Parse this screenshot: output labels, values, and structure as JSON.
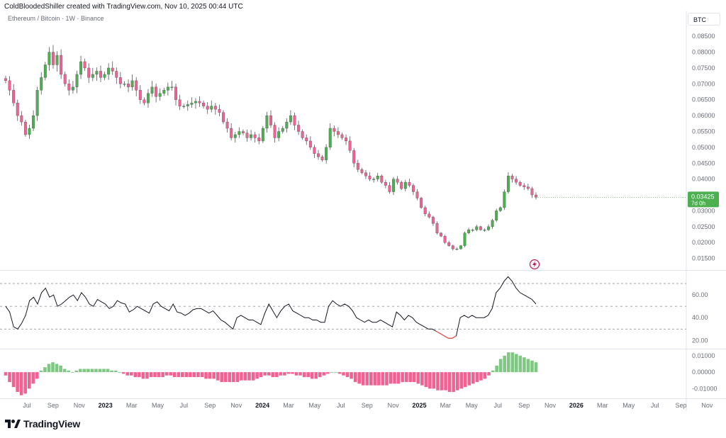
{
  "header": {
    "credit": "ColdBloodedShiller created with TradingView.com, Nov 10, 2025 00:44 UTC",
    "symbol": "Ethereum / Bitcoin · 1W · Binance",
    "currency": "BTC"
  },
  "brand": {
    "name": "TradingView",
    "icon": "tradingview-logo-icon"
  },
  "price_label": {
    "value": "0.03425",
    "countdown": "7d 0h",
    "color": "#4caf50"
  },
  "colors": {
    "up": "#4caf50",
    "down": "#f06292",
    "line": "#131722",
    "grid": "#e0e3eb",
    "hist_up": "#81c784",
    "hist_down": "#f06292"
  },
  "lightning_icon": "lightning-bolt-icon",
  "chart_data": [
    {
      "type": "candlestick",
      "title": "Ethereum / Bitcoin · 1W · Binance",
      "ylabel": "BTC",
      "ylim": [
        0.012,
        0.0875
      ],
      "yticks": [
        "0.08500",
        "0.08000",
        "0.07500",
        "0.07000",
        "0.06500",
        "0.06000",
        "0.05500",
        "0.05000",
        "0.04500",
        "0.04000",
        "0.03500",
        "0.03000",
        "0.02500",
        "0.02000",
        "0.01500"
      ],
      "last_price": 0.03425,
      "series_closes": [
        0.071,
        0.068,
        0.064,
        0.06,
        0.058,
        0.054,
        0.056,
        0.06,
        0.068,
        0.072,
        0.076,
        0.08,
        0.076,
        0.079,
        0.073,
        0.07,
        0.068,
        0.069,
        0.073,
        0.077,
        0.075,
        0.072,
        0.073,
        0.074,
        0.072,
        0.073,
        0.075,
        0.074,
        0.072,
        0.07,
        0.07,
        0.069,
        0.071,
        0.068,
        0.065,
        0.064,
        0.067,
        0.069,
        0.066,
        0.067,
        0.068,
        0.069,
        0.069,
        0.065,
        0.063,
        0.063,
        0.0635,
        0.064,
        0.0645,
        0.064,
        0.063,
        0.062,
        0.063,
        0.062,
        0.061,
        0.058,
        0.056,
        0.053,
        0.054,
        0.055,
        0.0545,
        0.053,
        0.054,
        0.053,
        0.052,
        0.056,
        0.06,
        0.057,
        0.053,
        0.055,
        0.056,
        0.058,
        0.06,
        0.057,
        0.055,
        0.053,
        0.052,
        0.05,
        0.048,
        0.047,
        0.046,
        0.05,
        0.056,
        0.055,
        0.054,
        0.053,
        0.052,
        0.049,
        0.045,
        0.043,
        0.042,
        0.041,
        0.04,
        0.04,
        0.041,
        0.039,
        0.038,
        0.036,
        0.04,
        0.039,
        0.037,
        0.039,
        0.038,
        0.036,
        0.034,
        0.031,
        0.029,
        0.028,
        0.026,
        0.023,
        0.022,
        0.02,
        0.019,
        0.018,
        0.018,
        0.019,
        0.023,
        0.024,
        0.024,
        0.025,
        0.024,
        0.024,
        0.025,
        0.027,
        0.03,
        0.031,
        0.036,
        0.041,
        0.04,
        0.039,
        0.038,
        0.0375,
        0.037,
        0.035,
        0.03425
      ]
    },
    {
      "type": "line",
      "name": "",
      "ylim": [
        14,
        80
      ],
      "yticks": [
        "60.00",
        "40.00",
        "20.00"
      ],
      "bands": [
        70,
        50,
        30
      ],
      "values": [
        50,
        45,
        32,
        30,
        35,
        42,
        55,
        58,
        52,
        62,
        66,
        58,
        60,
        50,
        52,
        55,
        58,
        60,
        55,
        62,
        58,
        52,
        50,
        56,
        54,
        52,
        48,
        50,
        55,
        53,
        52,
        45,
        47,
        50,
        48,
        46,
        44,
        52,
        54,
        50,
        48,
        46,
        52,
        45,
        44,
        42,
        44,
        47,
        48,
        48,
        46,
        44,
        46,
        42,
        38,
        36,
        33,
        30,
        40,
        42,
        40,
        38,
        38,
        36,
        34,
        44,
        52,
        46,
        40,
        46,
        50,
        52,
        46,
        44,
        42,
        40,
        40,
        38,
        38,
        36,
        36,
        50,
        55,
        52,
        50,
        52,
        50,
        46,
        40,
        38,
        36,
        38,
        36,
        36,
        38,
        36,
        34,
        32,
        45,
        42,
        38,
        42,
        40,
        36,
        34,
        32,
        30,
        30,
        28,
        26,
        24,
        22,
        22,
        24,
        40,
        42,
        40,
        42,
        40,
        40,
        40,
        42,
        48,
        62,
        66,
        72,
        76,
        72,
        66,
        62,
        60,
        58,
        56,
        52
      ]
    },
    {
      "type": "histogram",
      "name": "",
      "ylim": [
        -0.015,
        0.0125
      ],
      "yticks": [
        "0.01000",
        "0.00000",
        "-0.01000"
      ],
      "values": [
        -0.002,
        -0.006,
        -0.009,
        -0.012,
        -0.014,
        -0.013,
        -0.01,
        -0.007,
        -0.004,
        0.001,
        0.003,
        0.005,
        0.006,
        0.005,
        0.004,
        0.002,
        0.001,
        0.0,
        0.001,
        0.002,
        0.002,
        0.002,
        0.002,
        0.002,
        0.002,
        0.002,
        0.002,
        0.001,
        0.001,
        0.0,
        -0.001,
        -0.002,
        -0.002,
        -0.003,
        -0.003,
        -0.004,
        -0.004,
        -0.003,
        -0.003,
        -0.003,
        -0.003,
        -0.002,
        -0.002,
        -0.003,
        -0.003,
        -0.003,
        -0.003,
        -0.003,
        -0.003,
        -0.003,
        -0.003,
        -0.004,
        -0.004,
        -0.004,
        -0.005,
        -0.006,
        -0.006,
        -0.006,
        -0.006,
        -0.006,
        -0.005,
        -0.005,
        -0.005,
        -0.005,
        -0.004,
        -0.003,
        -0.002,
        -0.002,
        -0.003,
        -0.003,
        -0.002,
        -0.002,
        -0.001,
        -0.001,
        -0.002,
        -0.002,
        -0.003,
        -0.003,
        -0.004,
        -0.004,
        -0.003,
        -0.002,
        -0.001,
        0.0,
        0.0,
        -0.001,
        -0.002,
        -0.003,
        -0.004,
        -0.006,
        -0.007,
        -0.008,
        -0.008,
        -0.008,
        -0.008,
        -0.008,
        -0.008,
        -0.008,
        -0.007,
        -0.007,
        -0.007,
        -0.006,
        -0.006,
        -0.006,
        -0.006,
        -0.007,
        -0.008,
        -0.009,
        -0.01,
        -0.01,
        -0.011,
        -0.011,
        -0.011,
        -0.012,
        -0.012,
        -0.011,
        -0.01,
        -0.009,
        -0.008,
        -0.007,
        -0.006,
        -0.005,
        -0.004,
        -0.002,
        0.001,
        0.004,
        0.008,
        0.01,
        0.012,
        0.012,
        0.011,
        0.01,
        0.009,
        0.008,
        0.007,
        0.006
      ]
    },
    {
      "type": "time_axis",
      "labels": [
        {
          "text": "Jul",
          "bold": false
        },
        {
          "text": "Sep",
          "bold": false
        },
        {
          "text": "Nov",
          "bold": false
        },
        {
          "text": "2023",
          "bold": true
        },
        {
          "text": "Mar",
          "bold": false
        },
        {
          "text": "May",
          "bold": false
        },
        {
          "text": "Jul",
          "bold": false
        },
        {
          "text": "Sep",
          "bold": false
        },
        {
          "text": "Nov",
          "bold": false
        },
        {
          "text": "2024",
          "bold": true
        },
        {
          "text": "Mar",
          "bold": false
        },
        {
          "text": "May",
          "bold": false
        },
        {
          "text": "Jul",
          "bold": false
        },
        {
          "text": "Sep",
          "bold": false
        },
        {
          "text": "Nov",
          "bold": false
        },
        {
          "text": "2025",
          "bold": true
        },
        {
          "text": "Mar",
          "bold": false
        },
        {
          "text": "May",
          "bold": false
        },
        {
          "text": "Jul",
          "bold": false
        },
        {
          "text": "Sep",
          "bold": false
        },
        {
          "text": "Nov",
          "bold": false
        },
        {
          "text": "2026",
          "bold": true
        },
        {
          "text": "Mar",
          "bold": false
        },
        {
          "text": "May",
          "bold": false
        },
        {
          "text": "Jul",
          "bold": false
        },
        {
          "text": "Sep",
          "bold": false
        },
        {
          "text": "Nov",
          "bold": false
        }
      ]
    }
  ]
}
